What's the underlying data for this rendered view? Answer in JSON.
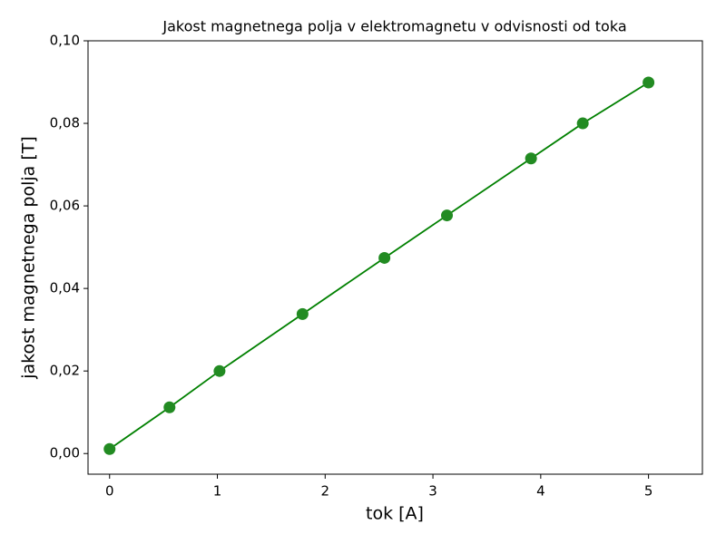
{
  "chart_data": {
    "type": "line",
    "title": "Jakost magnetnega polja v elektromagnetu v odvisnosti od toka",
    "x_label": "tok [A]",
    "y_label": "jakost magnetnega polja [T]",
    "x": [
      0,
      0.556,
      1.02,
      1.79,
      2.55,
      3.13,
      3.91,
      4.39,
      5.0
    ],
    "series": [
      {
        "color": "#008000",
        "marker_color": "#228b22",
        "values": [
          0.0011,
          0.0112,
          0.02,
          0.0338,
          0.0474,
          0.0577,
          0.0715,
          0.08,
          0.0899
        ]
      }
    ],
    "xlim": [
      -0.2,
      5.5
    ],
    "ylim": [
      -0.005,
      0.1
    ],
    "xticks": [
      0,
      1,
      2,
      3,
      4,
      5
    ],
    "yticks": [
      {
        "value": 0,
        "label": "0,00"
      },
      {
        "value": 0.02,
        "label": "0,02"
      },
      {
        "value": 0.04,
        "label": "0,04"
      },
      {
        "value": 0.06,
        "label": "0,06"
      },
      {
        "value": 0.08,
        "label": "0,08"
      },
      {
        "value": 0.1,
        "label": "0,10"
      }
    ],
    "grid": false,
    "markers": true
  }
}
